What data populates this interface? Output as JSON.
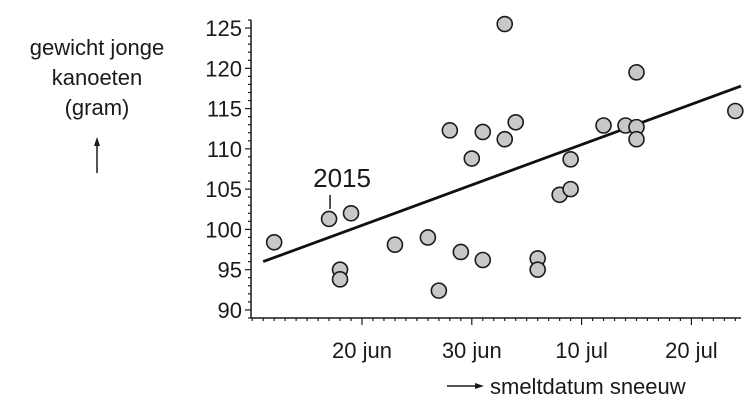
{
  "chart_data": {
    "type": "scatter",
    "ylabel_lines": [
      "gewicht jonge",
      "kanoeten",
      "(gram)"
    ],
    "xlabel": "smeltdatum sneeuw",
    "ylim": [
      89,
      126
    ],
    "yticks": [
      90,
      95,
      100,
      105,
      110,
      115,
      120,
      125
    ],
    "xlim": [
      "2000-06-09",
      "2000-07-25"
    ],
    "xticks": [
      {
        "date": "2000-06-20",
        "label": "20 jun"
      },
      {
        "date": "2000-06-30",
        "label": "30 jun"
      },
      {
        "date": "2000-07-10",
        "label": "10 jul"
      },
      {
        "date": "2000-07-20",
        "label": "20 jul"
      }
    ],
    "points": [
      {
        "x": "2000-06-12",
        "y": 98.4
      },
      {
        "x": "2000-06-17",
        "y": 101.3
      },
      {
        "x": "2000-06-18",
        "y": 95.0
      },
      {
        "x": "2000-06-18",
        "y": 93.8
      },
      {
        "x": "2000-06-19",
        "y": 102.0
      },
      {
        "x": "2000-06-23",
        "y": 98.1
      },
      {
        "x": "2000-06-26",
        "y": 99.0
      },
      {
        "x": "2000-06-27",
        "y": 92.4
      },
      {
        "x": "2000-06-28",
        "y": 112.3
      },
      {
        "x": "2000-06-29",
        "y": 97.2
      },
      {
        "x": "2000-06-30",
        "y": 108.8
      },
      {
        "x": "2000-07-01",
        "y": 96.2
      },
      {
        "x": "2000-07-01",
        "y": 112.1
      },
      {
        "x": "2000-07-03",
        "y": 111.2
      },
      {
        "x": "2000-07-03",
        "y": 125.5
      },
      {
        "x": "2000-07-04",
        "y": 113.3
      },
      {
        "x": "2000-07-06",
        "y": 96.4
      },
      {
        "x": "2000-07-06",
        "y": 95.0
      },
      {
        "x": "2000-07-08",
        "y": 104.3
      },
      {
        "x": "2000-07-09",
        "y": 105.0
      },
      {
        "x": "2000-07-09",
        "y": 108.7
      },
      {
        "x": "2000-07-12",
        "y": 112.9
      },
      {
        "x": "2000-07-14",
        "y": 112.9
      },
      {
        "x": "2000-07-15",
        "y": 119.5
      },
      {
        "x": "2000-07-15",
        "y": 112.7
      },
      {
        "x": "2000-07-15",
        "y": 111.2
      },
      {
        "x": "2000-07-24",
        "y": 114.7
      }
    ],
    "trendline": [
      {
        "x": "2000-06-11",
        "y": 96.0
      },
      {
        "x": "2000-07-25",
        "y": 117.8
      }
    ],
    "annotation": {
      "text": "2015",
      "x": "2000-06-17",
      "y": 101.3
    }
  }
}
